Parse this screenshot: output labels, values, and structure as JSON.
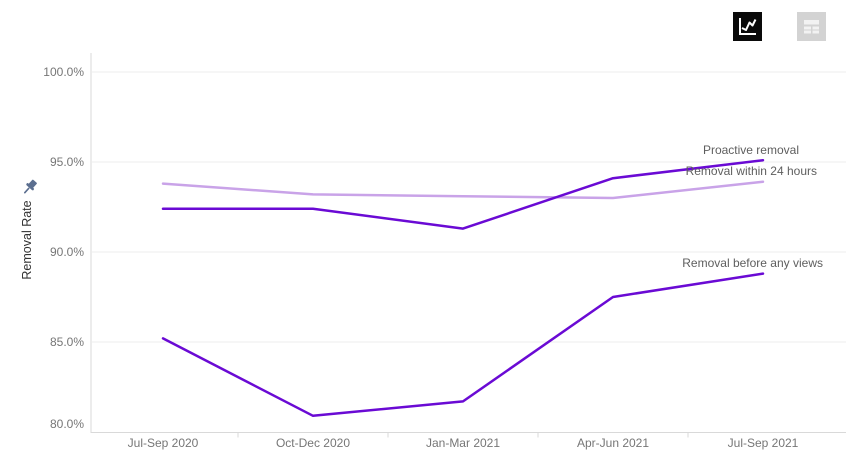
{
  "toolbar": {
    "icons": {
      "chart_view": "line-chart-icon",
      "table_view": "table-icon"
    }
  },
  "axis_pin_icon": "pin-icon",
  "chart_data": {
    "type": "line",
    "title": "",
    "xlabel": "",
    "ylabel": "Removal Rate",
    "categories": [
      "Jul-Sep 2020",
      "Oct-Dec 2020",
      "Jan-Mar 2021",
      "Apr-Jun 2021",
      "Jul-Sep 2021"
    ],
    "series": [
      {
        "id": "proactive",
        "name": "Proactive removal",
        "color": "#6a0ad4",
        "values": [
          92.4,
          92.4,
          91.3,
          94.1,
          95.1
        ]
      },
      {
        "id": "within24",
        "name": "Removal within 24 hours",
        "color": "#c9a3e8",
        "values": [
          93.8,
          93.2,
          93.1,
          93.0,
          93.9
        ]
      },
      {
        "id": "beforeviews",
        "name": "Removal before any views",
        "color": "#6a0ad4",
        "values": [
          85.2,
          80.9,
          81.7,
          87.5,
          88.8
        ]
      }
    ],
    "ylim": [
      80,
      100
    ],
    "yticks": [
      "100.0%",
      "95.0%",
      "90.0%",
      "85.0%",
      "80.0%"
    ],
    "ytick_values": [
      100,
      95,
      90,
      85,
      80
    ],
    "grid": true,
    "legend_position": "line-end-labels"
  }
}
